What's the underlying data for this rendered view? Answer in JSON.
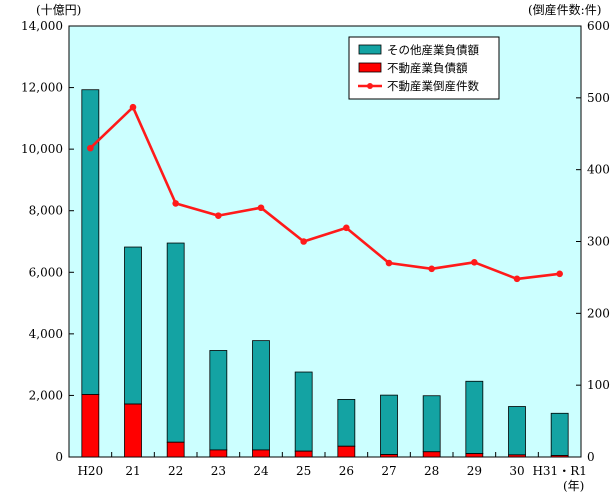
{
  "chart_data": {
    "type": "bar+line",
    "left_unit": "(十億円)",
    "right_unit": "(倒産件数:件)",
    "x_unit": "(年)",
    "categories": [
      "H20",
      "21",
      "22",
      "23",
      "24",
      "25",
      "26",
      "27",
      "28",
      "29",
      "30",
      "H31・R1"
    ],
    "y_left_ticks": [
      "0",
      "2,000",
      "4,000",
      "6,000",
      "8,000",
      "10,000",
      "12,000",
      "14,000"
    ],
    "y_right_ticks": [
      "0",
      "100",
      "200",
      "300",
      "400",
      "500",
      "600"
    ],
    "ylim_left": [
      0,
      14000
    ],
    "ylim_right": [
      0,
      600
    ],
    "series": [
      {
        "name": "その他産業負債額",
        "kind": "stacked-bar",
        "axis": "left",
        "values": [
          9900,
          5100,
          6470,
          3230,
          3550,
          2570,
          1520,
          1930,
          1820,
          2350,
          1570,
          1370
        ]
      },
      {
        "name": "不動産業負債額",
        "kind": "stacked-bar",
        "axis": "left",
        "values": [
          2030,
          1720,
          480,
          230,
          230,
          190,
          350,
          80,
          170,
          110,
          70,
          50
        ]
      },
      {
        "name": "不動産業倒産件数",
        "kind": "line",
        "axis": "right",
        "values": [
          430,
          487,
          353,
          336,
          347,
          300,
          319,
          270,
          262,
          271,
          248,
          255
        ]
      }
    ],
    "colors": {
      "plot_bg": "#ccffff",
      "bar_other": "#14a3a3",
      "bar_realestate": "#ff0000",
      "line": "#ff1a1a",
      "frame": "#000000"
    },
    "legend_position": "top-right",
    "grid": false
  }
}
